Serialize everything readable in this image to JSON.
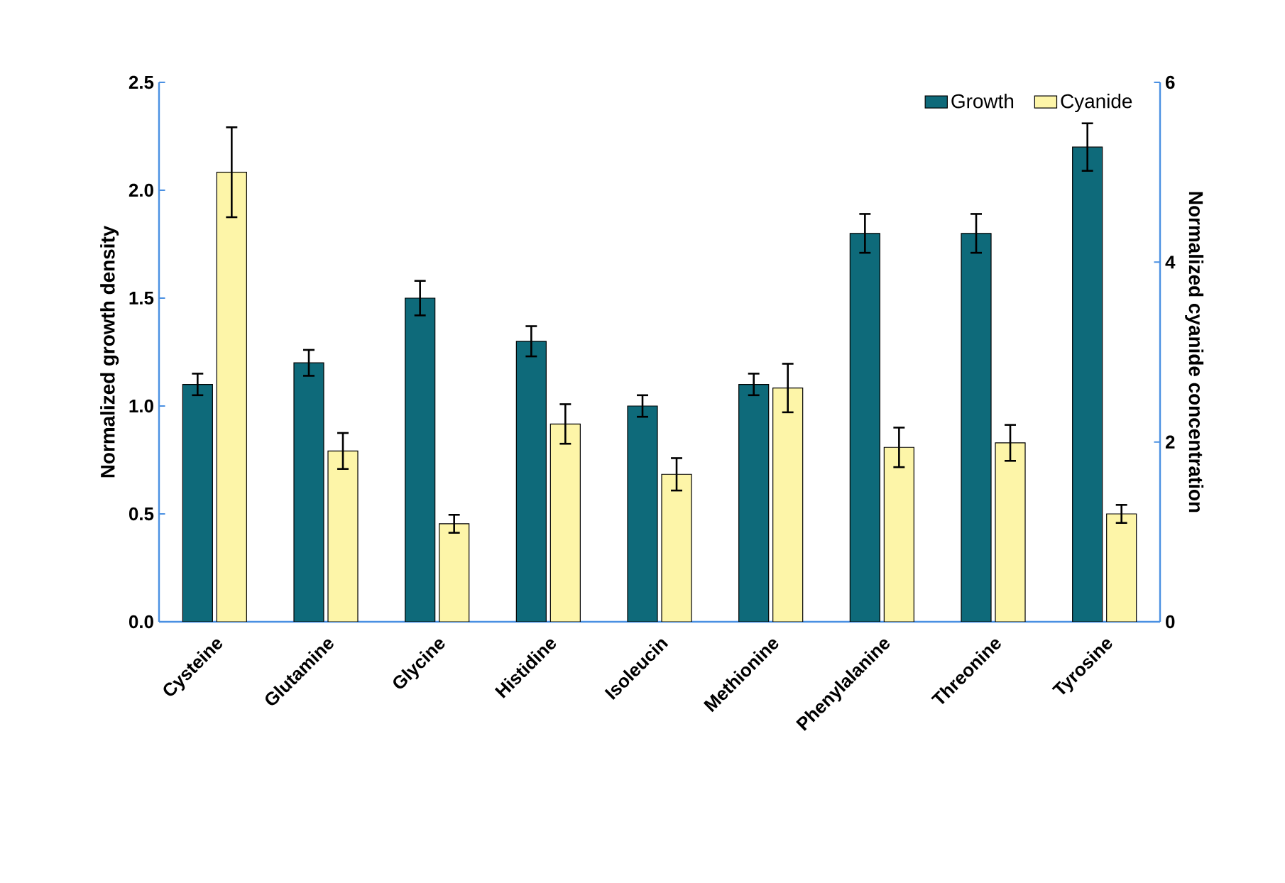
{
  "chart_data": {
    "type": "bar",
    "categories": [
      "Cysteine",
      "Glutamine",
      "Glycine",
      "Histidine",
      "Isoleucin",
      "Methionine",
      "Phenylalanine",
      "Threonine",
      "Tyrosine"
    ],
    "ylabel": "Normalized growth density",
    "y2label": "Normalized cyanide concentration",
    "ylim": [
      0,
      2.5
    ],
    "yticks": [
      {
        "value": 0,
        "label": "0.0"
      },
      {
        "value": 0.5,
        "label": "0.5"
      },
      {
        "value": 1,
        "label": "1.0"
      },
      {
        "value": 1.5,
        "label": "1.5"
      },
      {
        "value": 2,
        "label": "2.0"
      },
      {
        "value": 2.5,
        "label": "2.5"
      }
    ],
    "y2lim": [
      0,
      6
    ],
    "y2ticks": [
      0,
      2,
      4,
      6
    ],
    "legend": "top right",
    "series": [
      {
        "name": "Growth",
        "color": "#0e6a7a",
        "axis": "y",
        "values": [
          1.1,
          1.2,
          1.5,
          1.3,
          1.0,
          1.1,
          1.8,
          1.8,
          2.2
        ],
        "errors": [
          0.05,
          0.06,
          0.08,
          0.07,
          0.05,
          0.05,
          0.09,
          0.09,
          0.11
        ]
      },
      {
        "name": "Cyanide",
        "color": "#fdf5a8",
        "axis": "y2",
        "values": [
          5.0,
          1.9,
          1.09,
          2.2,
          1.64,
          2.6,
          1.94,
          1.99,
          1.2
        ],
        "errors": [
          0.5,
          0.2,
          0.1,
          0.22,
          0.18,
          0.27,
          0.22,
          0.2,
          0.1
        ]
      }
    ]
  }
}
